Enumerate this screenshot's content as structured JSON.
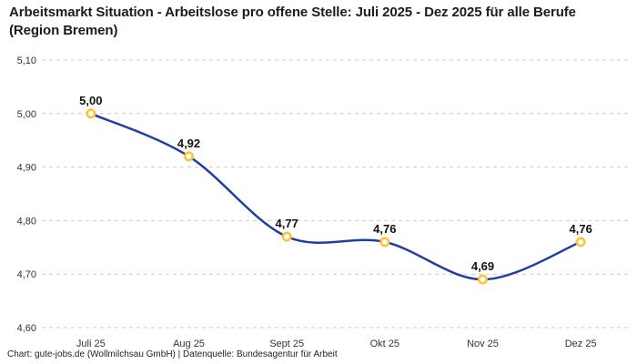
{
  "header": {
    "title": "Arbeitsmarkt Situation - Arbeitslose pro offene Stelle: Juli 2025 - Dez 2025 für alle Berufe (Region Bremen)"
  },
  "footer": {
    "credit": "Chart: gute-jobs.de (Wollmilchsau GmbH) | Datenquelle: Bundesagentur für Arbeit"
  },
  "chart_data": {
    "type": "line",
    "title": "Arbeitsmarkt Situation - Arbeitslose pro offene Stelle: Juli 2025 - Dez 2025 für alle Berufe (Region Bremen)",
    "categories": [
      "Juli 25",
      "Aug 25",
      "Sept 25",
      "Okt 25",
      "Nov 25",
      "Dez 25"
    ],
    "values": [
      5.0,
      4.92,
      4.77,
      4.76,
      4.69,
      4.76
    ],
    "data_labels": [
      "5,00",
      "4,92",
      "4,77",
      "4,76",
      "4,69",
      "4,76"
    ],
    "xlabel": "",
    "ylabel": "",
    "ylim": [
      4.6,
      5.1
    ],
    "y_ticks": [
      {
        "value": 5.1,
        "label": "5,10"
      },
      {
        "value": 5.0,
        "label": "5,00"
      },
      {
        "value": 4.9,
        "label": "4,90"
      },
      {
        "value": 4.8,
        "label": "4,80"
      },
      {
        "value": 4.7,
        "label": "4,70"
      },
      {
        "value": 4.6,
        "label": "4,60"
      }
    ],
    "grid": "horizontal-dashed",
    "legend": "none",
    "smooth": true,
    "colors": {
      "line": "#1e3f9e",
      "marker_ring": "#fdc334",
      "marker_fill": "#ffffff",
      "gridline": "#cccccc",
      "axis_text": "#333333",
      "data_label_text": "#111111",
      "title_text": "#1c1c1c",
      "background": "#ffffff"
    }
  }
}
